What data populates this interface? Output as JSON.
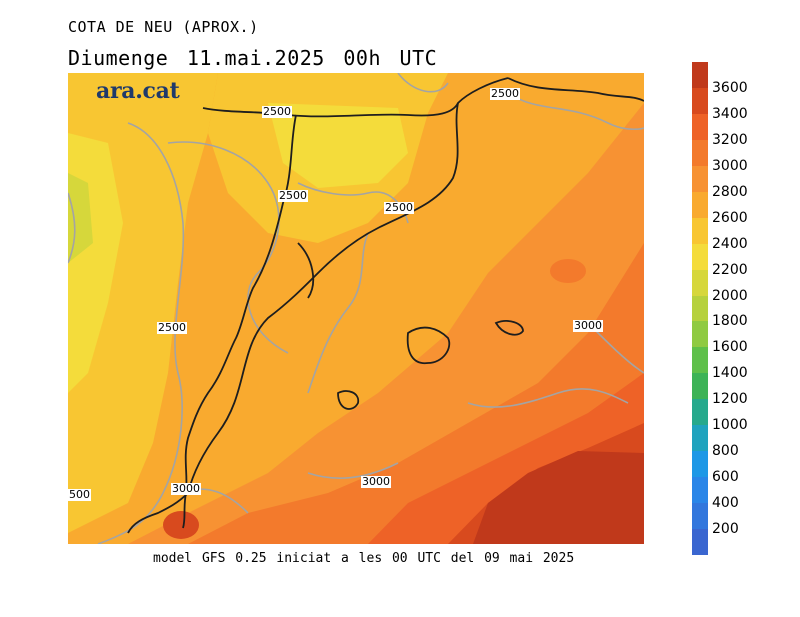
{
  "title": "COTA DE NEU (APROX.)",
  "subtitle": "Diumenge  11.mai.2025 00h UTC",
  "logo": "ara.cat",
  "footer": "model GFS 0.25 iniciat a les 00 UTC del 09 mai 2025",
  "contour_labels": [
    "2500",
    "2500",
    "2500",
    "2500",
    "2500",
    "3000",
    "3000",
    "3000",
    "500"
  ],
  "colorbar": {
    "labels": [
      "3600",
      "3400",
      "3200",
      "3000",
      "2800",
      "2600",
      "2400",
      "2200",
      "2000",
      "1800",
      "1600",
      "1400",
      "1200",
      "1000",
      "800",
      "600",
      "400",
      "200"
    ],
    "colors": [
      "#c0391b",
      "#d84a1e",
      "#ee6227",
      "#f37a2c",
      "#f79233",
      "#f9aa2f",
      "#f8c632",
      "#f4dc3b",
      "#d6d73b",
      "#b6d13d",
      "#8fca42",
      "#5fc04a",
      "#3db357",
      "#26a98c",
      "#1fa3be",
      "#1e98e6",
      "#2a86e8",
      "#3277dd",
      "#3a66d0"
    ]
  }
}
